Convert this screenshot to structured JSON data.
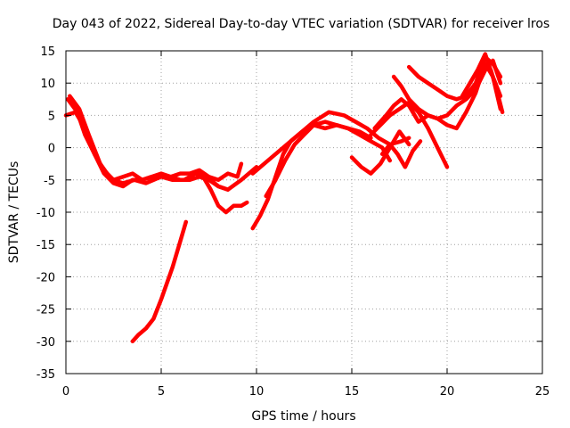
{
  "chart_data": {
    "type": "line",
    "title": "Day 043 of 2022, Sidereal Day-to-day VTEC variation (SDTVAR) for receiver lros",
    "xlabel": "GPS time / hours",
    "ylabel": "SDTVAR / TECUs",
    "xlim": [
      0,
      25
    ],
    "ylim": [
      -35,
      15
    ],
    "xticks": [
      0,
      5,
      10,
      15,
      20,
      25
    ],
    "yticks": [
      -35,
      -30,
      -25,
      -20,
      -15,
      -10,
      -5,
      0,
      5,
      10,
      15
    ],
    "grid": true,
    "color": "#ff0000",
    "series": [
      {
        "name": "s1",
        "x": [
          0.1,
          0.6,
          1.0,
          1.5,
          2.0,
          2.5,
          3.0,
          3.5,
          4.0,
          5.0,
          5.5,
          6.0,
          6.5,
          7.0,
          7.5,
          8.0,
          8.5,
          9.0,
          9.2
        ],
        "y": [
          7.5,
          5.5,
          2.0,
          -1.0,
          -3.5,
          -5.0,
          -4.5,
          -4.0,
          -5.0,
          -4.0,
          -4.5,
          -4.0,
          -4.0,
          -3.5,
          -4.5,
          -5.0,
          -4.0,
          -4.5,
          -2.5
        ]
      },
      {
        "name": "s2",
        "x": [
          0.2,
          0.7,
          1.2,
          1.8,
          2.4,
          3.0,
          3.6,
          4.2,
          5.0,
          5.6,
          6.2,
          6.8,
          7.4,
          8.0,
          8.5,
          9.2,
          10.0
        ],
        "y": [
          8.0,
          6.0,
          2.0,
          -2.5,
          -5.0,
          -5.5,
          -5.0,
          -5.5,
          -4.5,
          -5.0,
          -5.0,
          -4.0,
          -4.5,
          -6.0,
          -6.5,
          -5.0,
          -3.0
        ]
      },
      {
        "name": "s3",
        "x": [
          0.0,
          0.5,
          1.0,
          1.5,
          2.0,
          2.5,
          3.0,
          3.5,
          4.0,
          4.5,
          5.0,
          5.5,
          6.0,
          6.5,
          7.0,
          7.5,
          8.0,
          8.5
        ],
        "y": [
          5.0,
          5.5,
          3.0,
          -1.0,
          -4.0,
          -5.5,
          -6.0,
          -5.0,
          -5.0,
          -4.5,
          -4.5,
          -4.5,
          -5.0,
          -5.0,
          -4.5,
          -5.0,
          -6.0,
          -6.5
        ]
      },
      {
        "name": "s4",
        "x": [
          6.8,
          7.2,
          7.6,
          8.0,
          8.4,
          8.8,
          9.2,
          9.5
        ],
        "y": [
          -4.0,
          -4.5,
          -6.5,
          -9.0,
          -10.0,
          -9.0,
          -9.0,
          -8.5
        ]
      },
      {
        "name": "s5",
        "x": [
          3.5,
          3.8,
          4.2,
          4.6,
          5.0,
          5.3,
          5.6,
          6.0,
          6.3
        ],
        "y": [
          -30.0,
          -29.0,
          -28.0,
          -26.5,
          -23.5,
          -21.0,
          -18.5,
          -14.5,
          -11.5
        ]
      },
      {
        "name": "s6",
        "x": [
          9.8,
          10.2,
          10.6,
          11.0,
          11.4,
          11.8,
          12.4,
          13.0,
          13.6,
          14.2,
          14.8,
          15.4,
          16.0,
          16.6,
          17.0
        ],
        "y": [
          -12.5,
          -10.5,
          -8.0,
          -4.5,
          -1.0,
          1.0,
          2.5,
          3.5,
          3.0,
          3.5,
          3.0,
          2.0,
          1.0,
          0.0,
          -2.0
        ]
      },
      {
        "name": "s7",
        "x": [
          9.8,
          10.4,
          11.0,
          11.6,
          12.2,
          13.0,
          13.8,
          14.6,
          15.2,
          15.8,
          16.4,
          17.0,
          17.6,
          18.0
        ],
        "y": [
          -4.0,
          -2.5,
          -1.0,
          0.5,
          2.0,
          4.0,
          5.5,
          5.0,
          4.0,
          3.0,
          1.5,
          0.5,
          1.0,
          1.5
        ]
      },
      {
        "name": "s8",
        "x": [
          10.5,
          11.0,
          11.5,
          12.0,
          12.5,
          13.0,
          13.6,
          14.2,
          14.8,
          15.4,
          16.0
        ],
        "y": [
          -7.5,
          -5.0,
          -2.0,
          0.5,
          2.0,
          3.5,
          4.0,
          3.5,
          3.0,
          2.5,
          1.5
        ]
      },
      {
        "name": "s9",
        "x": [
          15.0,
          15.5,
          16.0,
          16.5,
          17.0,
          17.5,
          18.0
        ],
        "y": [
          -1.5,
          -3.0,
          -4.0,
          -2.5,
          0.0,
          2.5,
          0.5
        ]
      },
      {
        "name": "s10",
        "x": [
          16.0,
          16.5,
          17.0,
          17.5,
          18.0,
          18.5,
          19.0,
          19.5,
          20.0
        ],
        "y": [
          2.0,
          3.5,
          5.0,
          6.0,
          7.0,
          5.5,
          3.0,
          0.0,
          -3.0
        ]
      },
      {
        "name": "s11",
        "x": [
          16.2,
          16.8,
          17.2,
          17.6,
          18.0,
          18.5,
          19.0,
          19.5,
          20.0,
          20.5,
          21.0,
          21.5,
          22.0,
          22.4,
          22.8
        ],
        "y": [
          3.0,
          5.0,
          6.5,
          7.5,
          6.5,
          4.0,
          5.0,
          4.5,
          3.5,
          3.0,
          5.5,
          8.5,
          13.0,
          11.0,
          8.0
        ]
      },
      {
        "name": "s12",
        "x": [
          17.2,
          17.6,
          18.0,
          18.5,
          19.0,
          19.5,
          20.0,
          20.5,
          21.0,
          21.5,
          22.0,
          22.4,
          22.8
        ],
        "y": [
          11.0,
          9.5,
          7.5,
          6.0,
          5.0,
          4.5,
          5.0,
          6.5,
          7.5,
          9.0,
          12.0,
          13.5,
          10.0
        ]
      },
      {
        "name": "s13",
        "x": [
          18.0,
          18.5,
          19.0,
          19.5,
          20.0,
          20.5,
          21.0,
          21.5,
          22.0,
          22.4,
          22.8
        ],
        "y": [
          12.5,
          11.0,
          10.0,
          9.0,
          8.0,
          7.5,
          8.0,
          10.0,
          14.0,
          13.0,
          11.0
        ]
      },
      {
        "name": "s14",
        "x": [
          16.6,
          17.0,
          17.4,
          17.8,
          18.2,
          18.6
        ],
        "y": [
          -1.0,
          0.5,
          -1.0,
          -3.0,
          -0.5,
          1.0
        ]
      },
      {
        "name": "s15",
        "x": [
          20.8,
          21.2,
          21.6,
          22.0,
          22.4,
          22.8
        ],
        "y": [
          8.0,
          10.0,
          12.0,
          14.5,
          11.0,
          6.0
        ]
      },
      {
        "name": "s16",
        "x": [
          22.0,
          22.3,
          22.6,
          22.9
        ],
        "y": [
          13.0,
          12.0,
          9.0,
          5.5
        ]
      }
    ]
  }
}
